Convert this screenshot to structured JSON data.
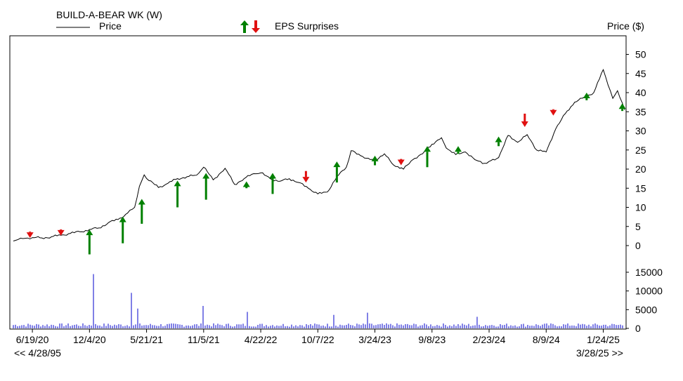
{
  "header": {
    "title": "BUILD-A-BEAR WK (W)",
    "price_legend": "Price",
    "eps_legend": "EPS Surprises",
    "price_axis_label": "Price ($)"
  },
  "footer": {
    "range_start": "<< 4/28/95",
    "range_end": "3/28/25 >>"
  },
  "colors": {
    "price_line": "#000000",
    "eps_up": "#008000",
    "eps_down": "#e01010",
    "volume": "#0000cc",
    "frame": "#000000"
  },
  "chart_data": [
    {
      "type": "line",
      "series": [
        {
          "name": "Price",
          "color": "#000000"
        }
      ],
      "x_tick_labels": [
        "6/19/20",
        "12/4/20",
        "5/21/21",
        "11/5/21",
        "4/22/22",
        "10/7/22",
        "3/24/23",
        "9/8/23",
        "2/23/24",
        "8/9/24",
        "1/24/25"
      ],
      "x_tick_dates": [
        "2020-06-19",
        "2020-12-04",
        "2021-05-21",
        "2021-11-05",
        "2022-04-22",
        "2022-10-07",
        "2023-03-24",
        "2023-09-08",
        "2024-02-23",
        "2024-08-09",
        "2025-01-24"
      ],
      "xlim": [
        "2020-04-24",
        "2025-03-28"
      ],
      "ylabel": "Price ($)",
      "ylim": [
        -4,
        55
      ],
      "y_ticks": [
        0,
        5,
        10,
        15,
        20,
        25,
        30,
        35,
        40,
        45,
        50
      ],
      "price": [
        [
          "2020-04-24",
          1.2
        ],
        [
          "2020-05-08",
          1.6
        ],
        [
          "2020-05-29",
          1.9
        ],
        [
          "2020-06-19",
          2.1
        ],
        [
          "2020-07-17",
          2.0
        ],
        [
          "2020-08-14",
          2.3
        ],
        [
          "2020-09-11",
          2.7
        ],
        [
          "2020-10-09",
          3.2
        ],
        [
          "2020-11-06",
          3.6
        ],
        [
          "2020-12-04",
          4.2
        ],
        [
          "2021-01-01",
          4.6
        ],
        [
          "2021-01-29",
          6.0
        ],
        [
          "2021-02-26",
          6.8
        ],
        [
          "2021-03-26",
          8.5
        ],
        [
          "2021-04-16",
          10.0
        ],
        [
          "2021-04-30",
          15.5
        ],
        [
          "2021-05-14",
          18.5
        ],
        [
          "2021-05-28",
          17.0
        ],
        [
          "2021-06-25",
          15.2
        ],
        [
          "2021-07-23",
          16.3
        ],
        [
          "2021-08-20",
          17.5
        ],
        [
          "2021-09-17",
          18.0
        ],
        [
          "2021-10-15",
          18.4
        ],
        [
          "2021-11-05",
          20.5
        ],
        [
          "2021-12-03",
          17.2
        ],
        [
          "2022-01-07",
          20.2
        ],
        [
          "2022-02-04",
          16.0
        ],
        [
          "2022-03-04",
          17.5
        ],
        [
          "2022-04-01",
          18.8
        ],
        [
          "2022-04-22",
          19.0
        ],
        [
          "2022-05-20",
          17.5
        ],
        [
          "2022-06-17",
          16.8
        ],
        [
          "2022-07-15",
          17.5
        ],
        [
          "2022-08-12",
          16.5
        ],
        [
          "2022-09-09",
          15.0
        ],
        [
          "2022-10-07",
          13.5
        ],
        [
          "2022-11-04",
          14.0
        ],
        [
          "2022-12-02",
          18.0
        ],
        [
          "2022-12-30",
          20.5
        ],
        [
          "2023-01-13",
          24.8
        ],
        [
          "2023-02-10",
          23.5
        ],
        [
          "2023-03-10",
          22.5
        ],
        [
          "2023-03-24",
          22.2
        ],
        [
          "2023-04-21",
          24.0
        ],
        [
          "2023-05-19",
          21.0
        ],
        [
          "2023-06-16",
          20.0
        ],
        [
          "2023-07-14",
          22.5
        ],
        [
          "2023-08-11",
          24.0
        ],
        [
          "2023-09-08",
          26.5
        ],
        [
          "2023-10-06",
          28.2
        ],
        [
          "2023-10-20",
          25.5
        ],
        [
          "2023-11-17",
          23.8
        ],
        [
          "2023-12-15",
          24.5
        ],
        [
          "2024-01-12",
          22.5
        ],
        [
          "2024-02-09",
          21.5
        ],
        [
          "2024-02-23",
          22.0
        ],
        [
          "2024-03-22",
          23.0
        ],
        [
          "2024-04-19",
          28.8
        ],
        [
          "2024-05-17",
          27.0
        ],
        [
          "2024-06-14",
          29.0
        ],
        [
          "2024-07-12",
          25.0
        ],
        [
          "2024-08-09",
          24.5
        ],
        [
          "2024-09-06",
          30.5
        ],
        [
          "2024-10-04",
          34.5
        ],
        [
          "2024-11-01",
          37.5
        ],
        [
          "2024-11-29",
          38.8
        ],
        [
          "2024-12-27",
          40.0
        ],
        [
          "2025-01-24",
          46.0
        ],
        [
          "2025-02-07",
          42.0
        ],
        [
          "2025-02-21",
          38.5
        ],
        [
          "2025-03-07",
          40.5
        ],
        [
          "2025-03-28",
          35.5
        ]
      ],
      "eps_surprises": [
        {
          "date": "2020-06-12",
          "direction": "down",
          "price": 2.0,
          "offset": 1
        },
        {
          "date": "2020-09-11",
          "direction": "down",
          "price": 2.6,
          "offset": 1
        },
        {
          "date": "2020-12-04",
          "direction": "up",
          "price": 4.2,
          "offset": 6.5
        },
        {
          "date": "2021-03-12",
          "direction": "up",
          "price": 7.6,
          "offset": 7
        },
        {
          "date": "2021-05-07",
          "direction": "up",
          "price": 12.2,
          "offset": 6.5
        },
        {
          "date": "2021-08-20",
          "direction": "up",
          "price": 17.0,
          "offset": 7
        },
        {
          "date": "2021-11-12",
          "direction": "up",
          "price": 19.0,
          "offset": 7
        },
        {
          "date": "2022-03-11",
          "direction": "up",
          "price": 16.8,
          "offset": 1.8
        },
        {
          "date": "2022-05-27",
          "direction": "up",
          "price": 19.0,
          "offset": 5.5
        },
        {
          "date": "2022-09-02",
          "direction": "down",
          "price": 16.5,
          "offset": 3
        },
        {
          "date": "2022-12-02",
          "direction": "up",
          "price": 22.0,
          "offset": 5.5
        },
        {
          "date": "2023-03-24",
          "direction": "up",
          "price": 23.5,
          "offset": 2.5
        },
        {
          "date": "2023-06-09",
          "direction": "down",
          "price": 21.0,
          "offset": 1.5
        },
        {
          "date": "2023-08-25",
          "direction": "up",
          "price": 26.0,
          "offset": 5.5
        },
        {
          "date": "2023-11-24",
          "direction": "up",
          "price": 26.0,
          "offset": 2
        },
        {
          "date": "2024-03-22",
          "direction": "up",
          "price": 28.5,
          "offset": 2.5
        },
        {
          "date": "2024-06-07",
          "direction": "down",
          "price": 31.0,
          "offset": 3.5
        },
        {
          "date": "2024-08-30",
          "direction": "down",
          "price": 34.0,
          "offset": 1.5
        },
        {
          "date": "2024-12-06",
          "direction": "up",
          "price": 40.0,
          "offset": 2
        },
        {
          "date": "2025-03-21",
          "direction": "up",
          "price": 37.2,
          "offset": 2
        }
      ],
      "grid": false
    },
    {
      "type": "bar",
      "series": [],
      "ylim": [
        0,
        19000
      ],
      "y_ticks": [
        0,
        5000,
        10000,
        15000
      ],
      "base_level": 900,
      "spikes": [
        {
          "date": "2020-12-18",
          "value": 14500
        },
        {
          "date": "2021-04-09",
          "value": 9500
        },
        {
          "date": "2021-04-23",
          "value": 5300
        },
        {
          "date": "2021-11-05",
          "value": 6000
        },
        {
          "date": "2022-03-11",
          "value": 4400
        },
        {
          "date": "2022-11-25",
          "value": 3600
        },
        {
          "date": "2023-03-03",
          "value": 4200
        },
        {
          "date": "2024-01-19",
          "value": 3100
        }
      ]
    }
  ]
}
